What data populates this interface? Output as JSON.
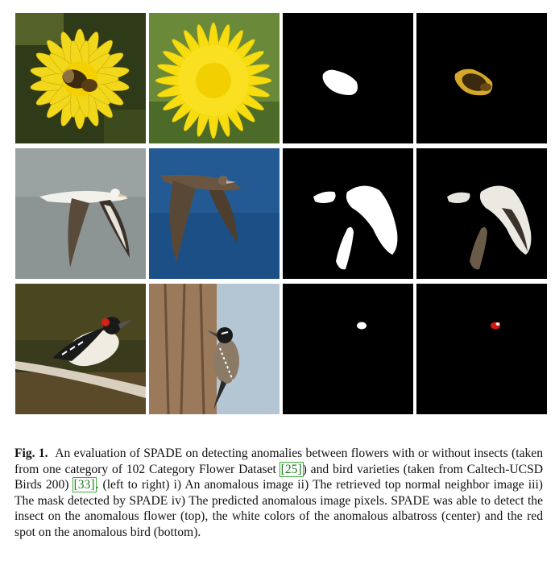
{
  "figure": {
    "rows": [
      {
        "row": "flower",
        "panels": [
          {
            "role": "anomalous-image",
            "subject": "dandelion with insect"
          },
          {
            "role": "retrieved-normal-neighbor",
            "subject": "dandelion"
          },
          {
            "role": "detected-mask",
            "subject": "insect mask"
          },
          {
            "role": "predicted-anomalous-pixels",
            "subject": "insect"
          }
        ]
      },
      {
        "row": "albatross",
        "panels": [
          {
            "role": "anomalous-image",
            "subject": "albatross in flight over grey water"
          },
          {
            "role": "retrieved-normal-neighbor",
            "subject": "brown albatross over blue water"
          },
          {
            "role": "detected-mask",
            "subject": "head, body and wing mask"
          },
          {
            "role": "predicted-anomalous-pixels",
            "subject": "white colours of albatross"
          }
        ]
      },
      {
        "row": "woodpecker",
        "panels": [
          {
            "role": "anomalous-image",
            "subject": "woodpecker with red spot on branch"
          },
          {
            "role": "retrieved-normal-neighbor",
            "subject": "woodpecker on tree trunk"
          },
          {
            "role": "detected-mask",
            "subject": "small spot mask"
          },
          {
            "role": "predicted-anomalous-pixels",
            "subject": "red spot"
          }
        ]
      }
    ],
    "colors": {
      "mask_bg": "#000000",
      "mask_fg": "#ffffff",
      "citation_link": "#1d7a1d"
    }
  },
  "caption": {
    "label": "Fig. 1.",
    "part1": "An evaluation of SPADE on detecting anomalies between flowers with or without insects (taken from one category of 102 Category Flower Dataset ",
    "cite1": "[25]",
    "part2": ") and bird varieties (taken from Caltech-UCSD Birds 200) ",
    "cite2": "[33]",
    "part3": ". (left to right) i) An anomalous image ii) The retrieved top normal neighbor image iii) The mask detected by SPADE iv) The predicted anomalous image pixels. SPADE was able to detect the insect on the anomalous flower (top), the white colors of the anomalous albatross (center) and the red spot on the anomalous bird (bottom)."
  }
}
